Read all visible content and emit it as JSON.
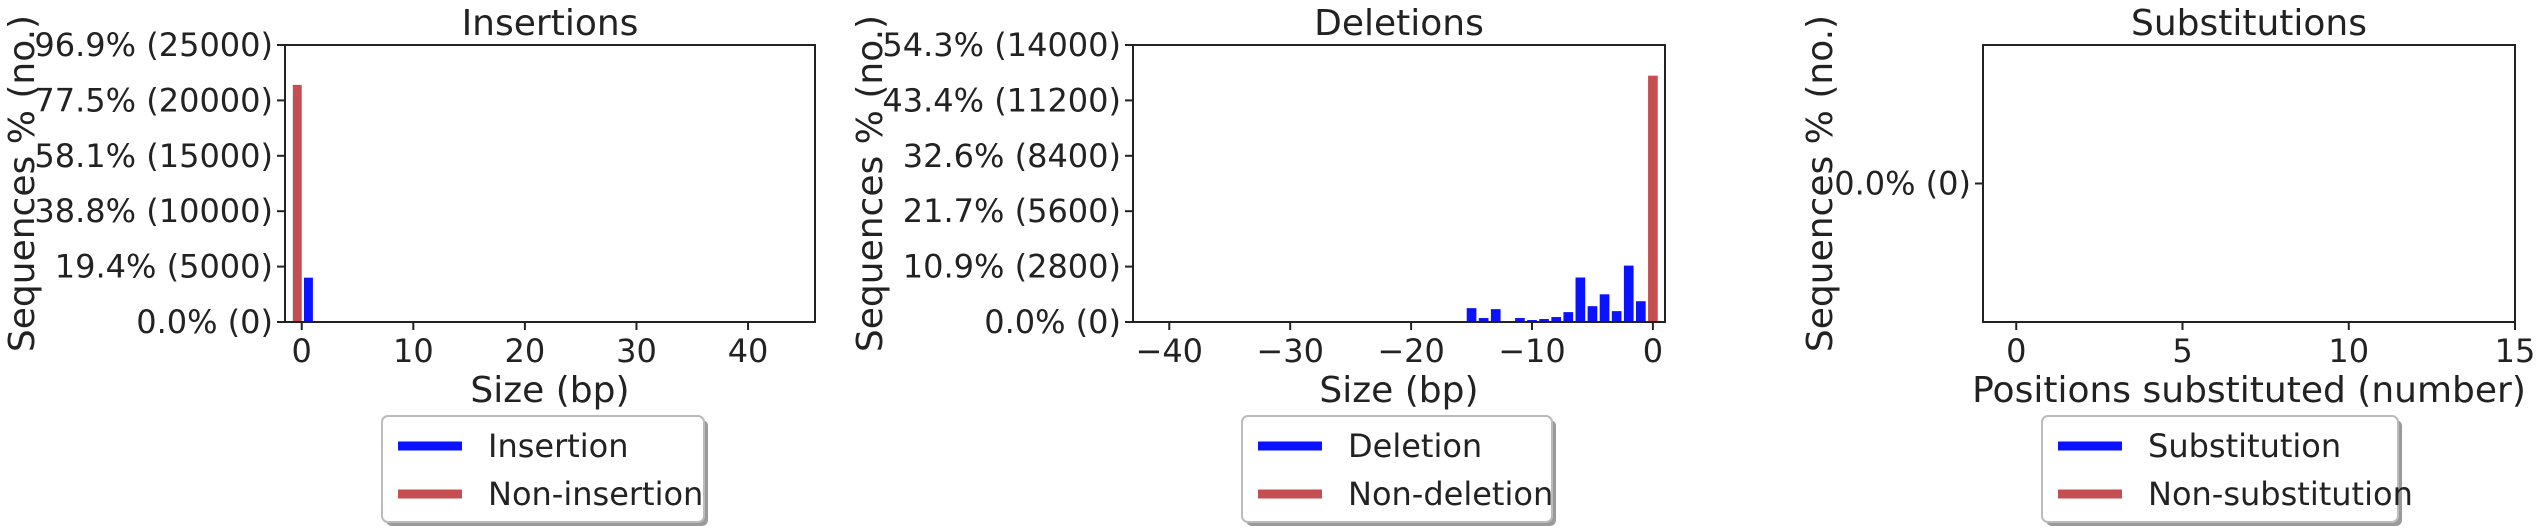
{
  "colors": {
    "event": "#0a12ff",
    "non_event": "#c44e52"
  },
  "chart_data": [
    {
      "type": "bar",
      "title": "Insertions",
      "xlabel": "Size (bp)",
      "ylabel": "Sequences % (no.)",
      "xlim": [
        -1.5,
        46
      ],
      "ylim": [
        0,
        25000
      ],
      "xticks": [
        0,
        10,
        20,
        30,
        40
      ],
      "xtick_labels": [
        "0",
        "10",
        "20",
        "30",
        "40"
      ],
      "yticks": [
        0,
        5000,
        10000,
        15000,
        20000,
        25000
      ],
      "ytick_labels": [
        "0.0% (0)",
        "19.4% (5000)",
        "38.8% (10000)",
        "58.1% (15000)",
        "77.5% (20000)",
        "96.9% (25000)"
      ],
      "series": [
        {
          "name": "Insertion",
          "color": "#0a12ff",
          "x": [
            0.6
          ],
          "values": [
            4000
          ]
        },
        {
          "name": "Non-insertion",
          "color": "#c44e52",
          "x": [
            -0.4
          ],
          "values": [
            21400
          ]
        }
      ],
      "legend": {
        "placement": "below",
        "labels": [
          "Insertion",
          "Non-insertion"
        ]
      }
    },
    {
      "type": "bar",
      "title": "Deletions",
      "xlabel": "Size (bp)",
      "ylabel": "Sequences % (no.)",
      "xlim": [
        -43,
        1
      ],
      "ylim": [
        0,
        14000
      ],
      "xticks": [
        -40,
        -30,
        -20,
        -10,
        0
      ],
      "xtick_labels": [
        "−40",
        "−30",
        "−20",
        "−10",
        "0"
      ],
      "yticks": [
        0,
        2800,
        5600,
        8400,
        11200,
        14000
      ],
      "ytick_labels": [
        "0.0% (0)",
        "10.9% (2800)",
        "21.7% (5600)",
        "32.6% (8400)",
        "43.4% (11200)",
        "54.3% (14000)"
      ],
      "series": [
        {
          "name": "Deletion",
          "color": "#0a12ff",
          "x": [
            -15,
            -14,
            -13,
            -11,
            -10,
            -9,
            -8,
            -7,
            -6,
            -5,
            -4,
            -3,
            -2,
            -1
          ],
          "values": [
            700,
            200,
            650,
            200,
            100,
            150,
            250,
            500,
            2250,
            800,
            1400,
            550,
            2850,
            1050
          ]
        },
        {
          "name": "Non-deletion",
          "color": "#c44e52",
          "x": [
            0
          ],
          "values": [
            12450
          ]
        }
      ],
      "legend": {
        "placement": "below",
        "labels": [
          "Deletion",
          "Non-deletion"
        ]
      }
    },
    {
      "type": "bar",
      "title": "Substitutions",
      "xlabel": "Positions substituted (number)",
      "ylabel": "Sequences % (no.)",
      "xlim": [
        -1,
        15
      ],
      "ylim": [
        -1,
        1
      ],
      "xticks": [
        0,
        5,
        10,
        15
      ],
      "xtick_labels": [
        "0",
        "5",
        "10",
        "15"
      ],
      "yticks": [
        0
      ],
      "ytick_labels": [
        "0.0% (0)"
      ],
      "series": [
        {
          "name": "Substitution",
          "color": "#0a12ff",
          "x": [],
          "values": []
        },
        {
          "name": "Non-substitution",
          "color": "#c44e52",
          "x": [],
          "values": []
        }
      ],
      "legend": {
        "placement": "below",
        "labels": [
          "Substitution",
          "Non-substitution"
        ]
      }
    }
  ]
}
